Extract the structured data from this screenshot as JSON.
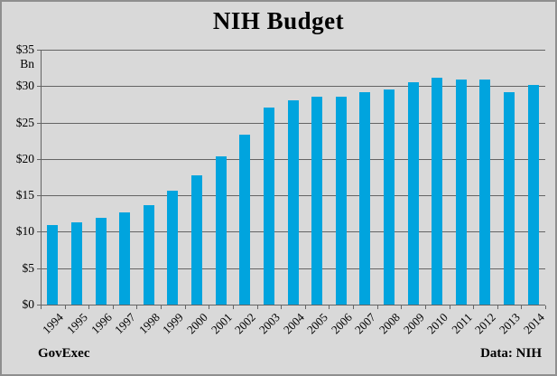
{
  "title": "NIH Budget",
  "footer": {
    "left": "GovExec",
    "right": "Data: NIH"
  },
  "colors": {
    "background": "#d9d9d9",
    "frame_border": "#8f8f8f",
    "bar": "#00a4de",
    "gridline": "#646464",
    "text": "#000000"
  },
  "chart_data": {
    "type": "bar",
    "title": "NIH Budget",
    "categories": [
      "1994",
      "1995",
      "1996",
      "1997",
      "1998",
      "1999",
      "2000",
      "2001",
      "2002",
      "2003",
      "2004",
      "2005",
      "2006",
      "2007",
      "2008",
      "2009",
      "2010",
      "2011",
      "2012",
      "2013",
      "2014"
    ],
    "values": [
      10.9,
      11.3,
      11.9,
      12.7,
      13.6,
      15.6,
      17.8,
      20.4,
      23.3,
      27.1,
      28.0,
      28.6,
      28.6,
      29.2,
      29.5,
      30.5,
      31.2,
      30.9,
      30.9,
      29.2,
      30.1
    ],
    "xlabel": "",
    "ylabel": "",
    "ylim": [
      0,
      35
    ],
    "y_unit_label": "Bn",
    "yticks": [
      {
        "value": 35,
        "label": "$35"
      },
      {
        "value": 30,
        "label": "$30"
      },
      {
        "value": 25,
        "label": "$25"
      },
      {
        "value": 20,
        "label": "$20"
      },
      {
        "value": 15,
        "label": "$15"
      },
      {
        "value": 10,
        "label": "$10"
      },
      {
        "value": 5,
        "label": "$5"
      },
      {
        "value": 0,
        "label": "$0"
      }
    ],
    "grid": true,
    "legend": "none",
    "x_label_rotation_deg": -45
  }
}
